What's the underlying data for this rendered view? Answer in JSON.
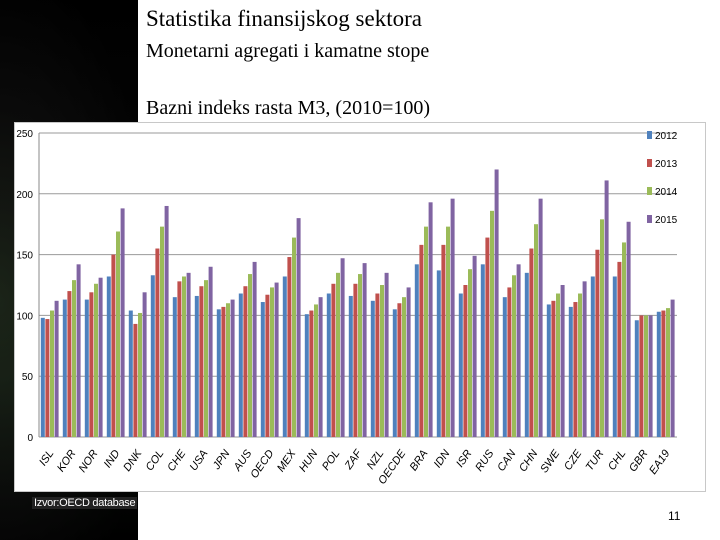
{
  "slide": {
    "title": "Statistika finansijskog sektora",
    "subtitle": "Monetarni agregati i kamatne stope",
    "source": "Izvor:OECD database",
    "page_number": "11"
  },
  "colors": {
    "2012": "#4f81bd",
    "2013": "#c0504d",
    "2014": "#9bbb59",
    "2015": "#8064a2"
  },
  "chart_data": {
    "type": "bar",
    "title": "Bazni indeks rasta M3, (2010=100)",
    "ylim": [
      0,
      250
    ],
    "yticks": [
      "0",
      "50",
      "100",
      "150",
      "200",
      "250"
    ],
    "grid": true,
    "legend": "top-right",
    "categories": [
      "ISL",
      "KOR",
      "NOR",
      "IND",
      "DNK",
      "COL",
      "CHE",
      "USA",
      "JPN",
      "AUS",
      "OECD",
      "MEX",
      "HUN",
      "POL",
      "ZAF",
      "NZL",
      "OECDE",
      "BRA",
      "IDN",
      "ISR",
      "RUS",
      "CAN",
      "CHN",
      "SWE",
      "CZE",
      "TUR",
      "CHL",
      "GBR",
      "EA19"
    ],
    "series": [
      {
        "name": "2012",
        "values": [
          98,
          113,
          113,
          132,
          104,
          133,
          115,
          116,
          105,
          118,
          111,
          132,
          101,
          118,
          116,
          112,
          105,
          142,
          137,
          118,
          142,
          115,
          135,
          109,
          107,
          132,
          132,
          96,
          103
        ]
      },
      {
        "name": "2013",
        "values": [
          97,
          120,
          119,
          150,
          93,
          155,
          128,
          124,
          107,
          124,
          117,
          148,
          104,
          126,
          126,
          118,
          110,
          158,
          158,
          125,
          164,
          123,
          155,
          112,
          111,
          154,
          144,
          100,
          104
        ]
      },
      {
        "name": "2014",
        "values": [
          104,
          129,
          126,
          169,
          102,
          173,
          132,
          129,
          110,
          134,
          123,
          164,
          109,
          135,
          134,
          125,
          115,
          173,
          173,
          138,
          186,
          133,
          175,
          118,
          118,
          179,
          160,
          100,
          106
        ]
      },
      {
        "name": "2015",
        "values": [
          112,
          142,
          131,
          188,
          119,
          190,
          135,
          140,
          113,
          144,
          127,
          180,
          115,
          147,
          143,
          135,
          123,
          193,
          196,
          149,
          220,
          142,
          196,
          125,
          128,
          211,
          177,
          100,
          113
        ]
      }
    ]
  }
}
